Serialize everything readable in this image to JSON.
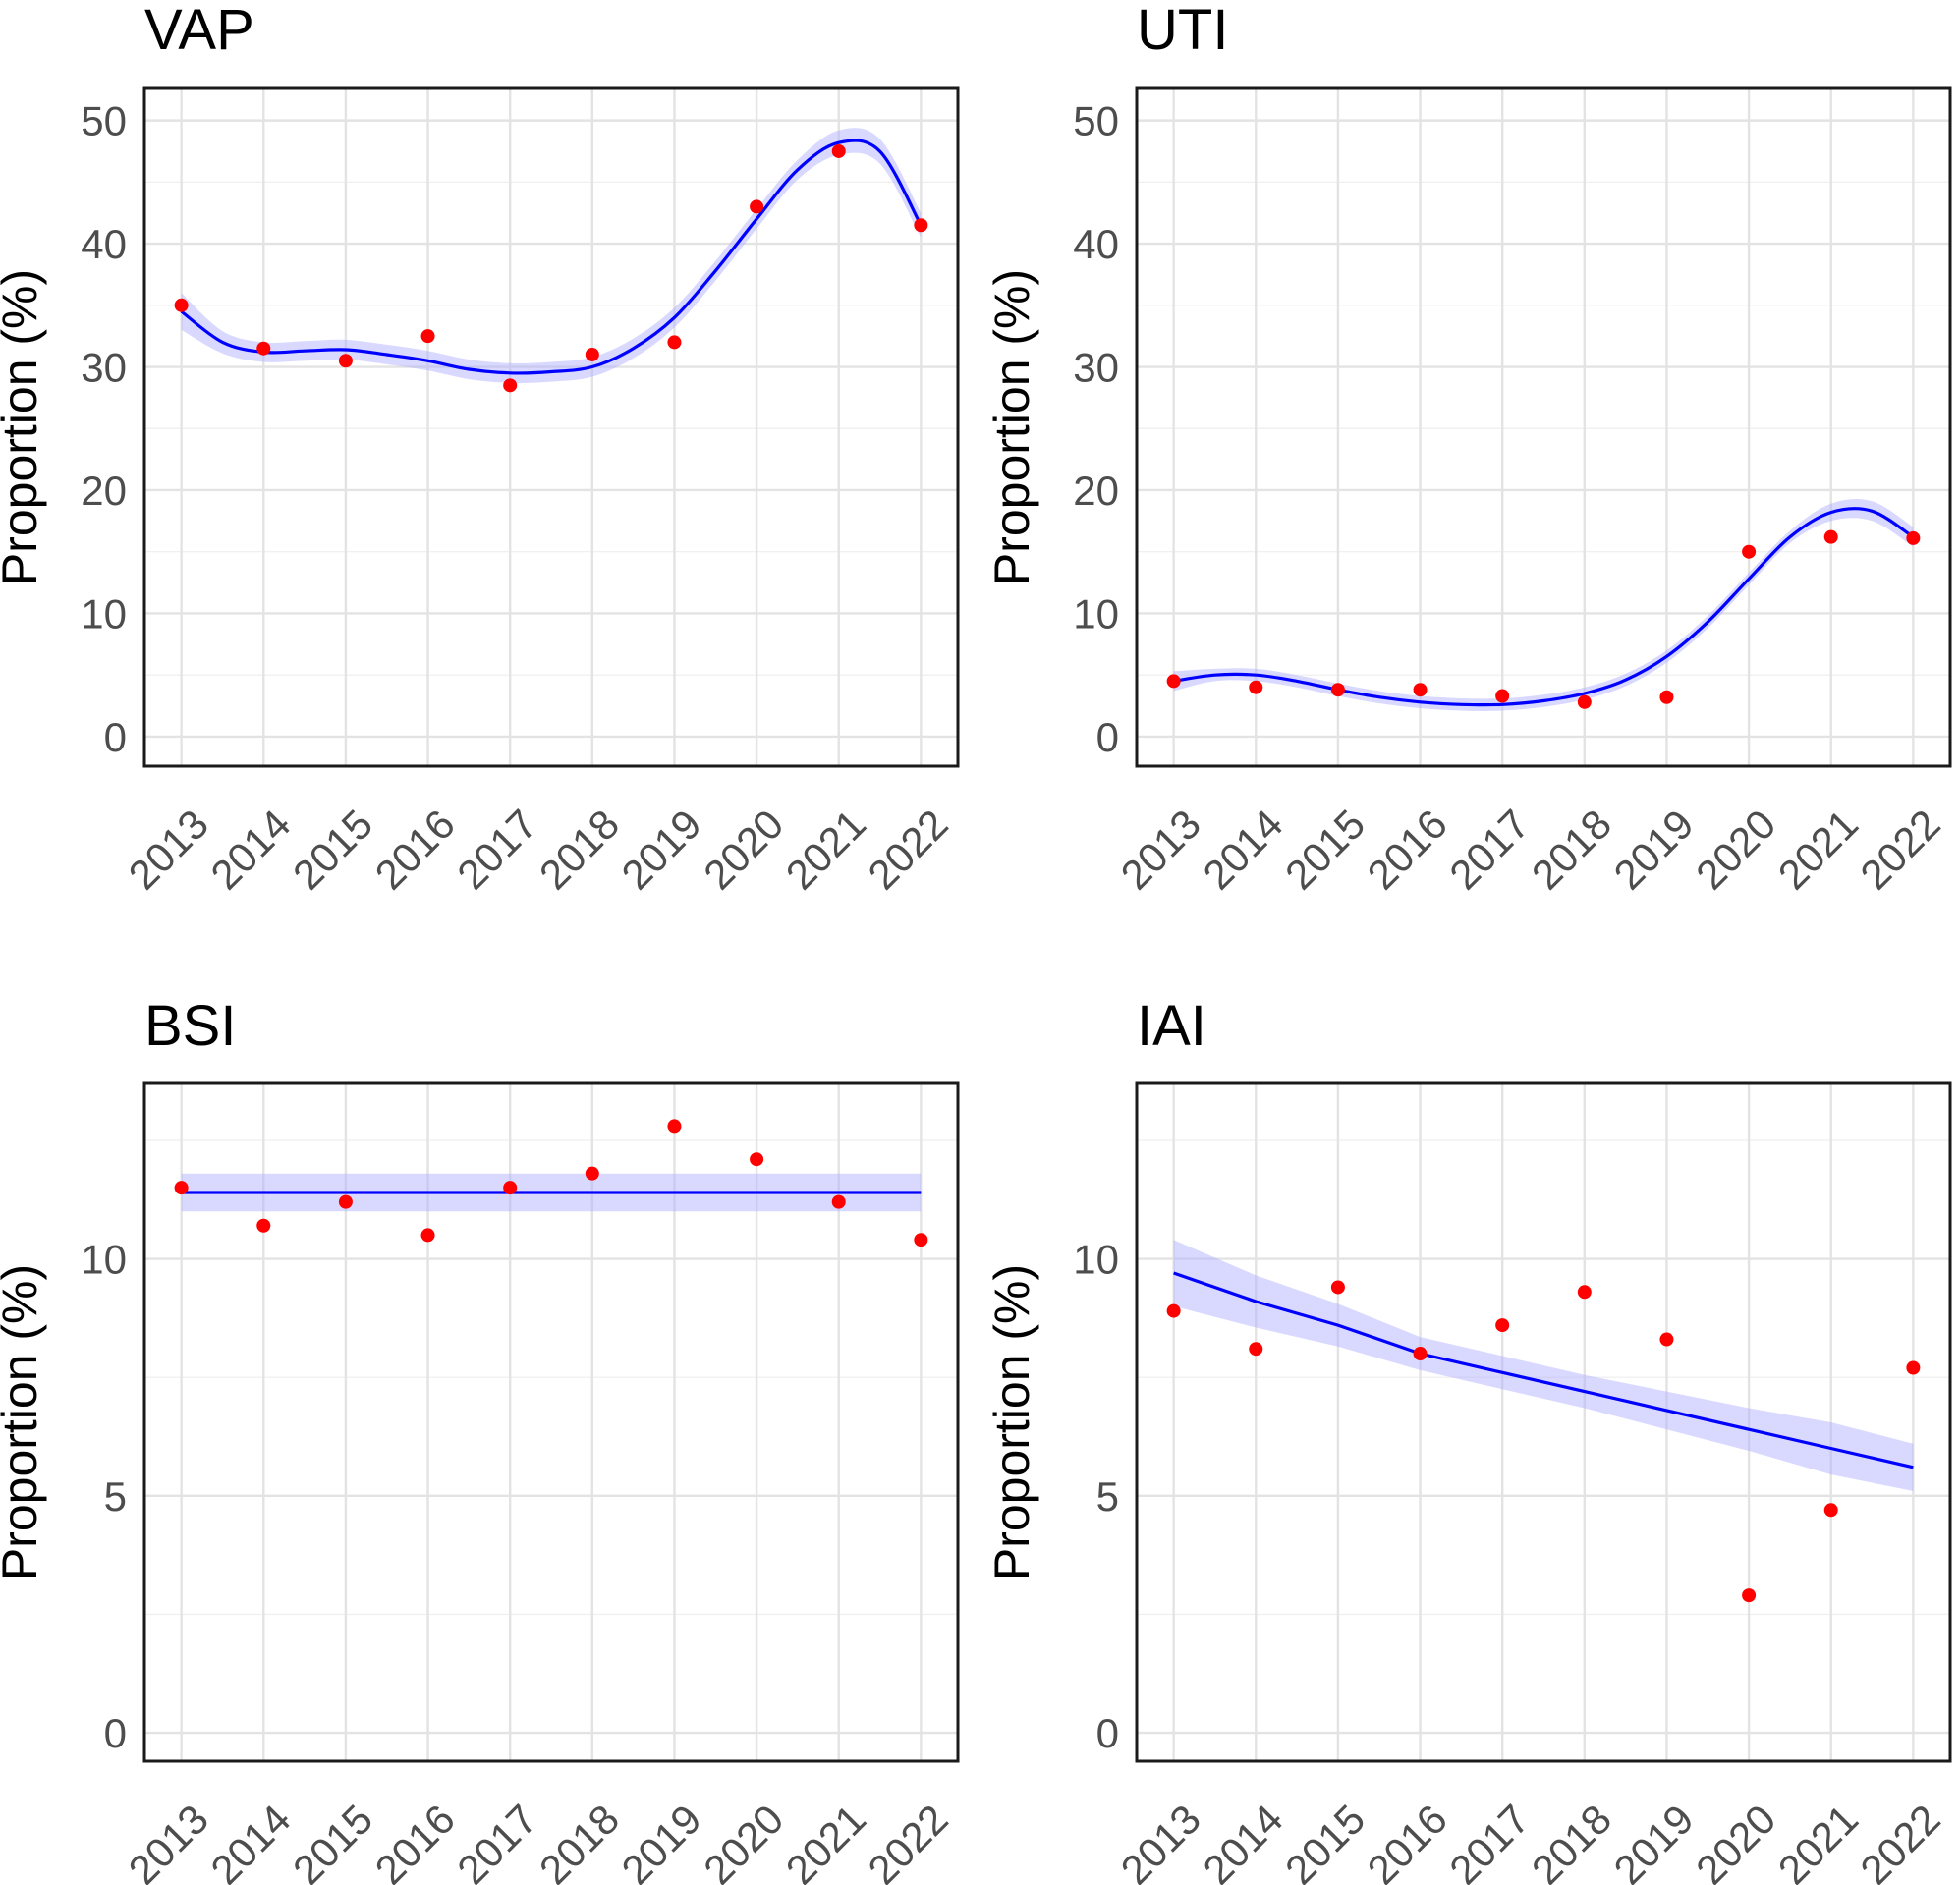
{
  "chart_data": [
    {
      "type": "scatter",
      "title": "VAP",
      "xlabel": "",
      "ylabel": "Proportion (%)",
      "x": [
        "2013",
        "2014",
        "2015",
        "2016",
        "2017",
        "2018",
        "2019",
        "2020",
        "2021",
        "2022"
      ],
      "y": [
        35.0,
        31.5,
        30.5,
        32.5,
        28.5,
        31.0,
        32.0,
        43.0,
        47.5,
        41.5
      ],
      "yticks": [
        0,
        10,
        20,
        30,
        40,
        50
      ],
      "ylim": [
        -2.4,
        52.6
      ],
      "fit": {
        "style": "loess",
        "x": [
          0,
          0.5,
          1,
          1.5,
          2,
          2.5,
          3,
          3.5,
          4,
          4.5,
          5,
          5.5,
          6,
          6.5,
          7,
          7.5,
          8,
          8.5,
          9
        ],
        "y": [
          34.5,
          32.0,
          31.2,
          31.3,
          31.4,
          31.0,
          30.5,
          29.8,
          29.5,
          29.6,
          30.0,
          31.5,
          34.0,
          37.8,
          42.0,
          46.0,
          48.2,
          47.5,
          41.5
        ],
        "se": [
          1.5,
          0.9,
          0.8,
          0.8,
          0.8,
          0.8,
          0.8,
          0.8,
          0.8,
          0.8,
          0.8,
          0.8,
          0.8,
          0.8,
          0.8,
          0.8,
          1.0,
          1.0,
          1.0
        ]
      },
      "colors": {
        "points": "#ff0000",
        "line": "#0000ff",
        "band": "#aaaaff"
      }
    },
    {
      "type": "scatter",
      "title": "UTI",
      "xlabel": "",
      "ylabel": "Proportion (%)",
      "x": [
        "2013",
        "2014",
        "2015",
        "2016",
        "2017",
        "2018",
        "2019",
        "2020",
        "2021",
        "2022"
      ],
      "y": [
        4.5,
        4.0,
        3.8,
        3.8,
        3.3,
        2.8,
        3.2,
        15.0,
        16.2,
        16.1
      ],
      "yticks": [
        0,
        10,
        20,
        30,
        40,
        50
      ],
      "ylim": [
        -2.4,
        52.6
      ],
      "fit": {
        "style": "loess",
        "x": [
          0,
          0.5,
          1,
          1.5,
          2,
          2.5,
          3,
          3.5,
          4,
          4.5,
          5,
          5.5,
          6,
          6.5,
          7,
          7.5,
          8,
          8.5,
          9
        ],
        "y": [
          4.5,
          5.0,
          5.0,
          4.5,
          3.8,
          3.2,
          2.8,
          2.6,
          2.6,
          2.9,
          3.5,
          4.6,
          6.5,
          9.3,
          12.8,
          16.2,
          18.2,
          18.3,
          16.2
        ],
        "se": [
          0.8,
          0.5,
          0.5,
          0.5,
          0.5,
          0.5,
          0.5,
          0.5,
          0.5,
          0.5,
          0.5,
          0.5,
          0.5,
          0.5,
          0.5,
          0.5,
          0.7,
          0.8,
          0.8
        ]
      },
      "colors": {
        "points": "#ff0000",
        "line": "#0000ff",
        "band": "#aaaaff"
      }
    },
    {
      "type": "scatter",
      "title": "BSI",
      "xlabel": "",
      "ylabel": "Proportion (%)",
      "x": [
        "2013",
        "2014",
        "2015",
        "2016",
        "2017",
        "2018",
        "2019",
        "2020",
        "2021",
        "2022"
      ],
      "y": [
        11.5,
        10.7,
        11.2,
        10.5,
        11.5,
        11.8,
        12.8,
        12.1,
        11.2,
        10.4
      ],
      "yticks": [
        0,
        5,
        10
      ],
      "ylim": [
        -0.6,
        13.7
      ],
      "fit": {
        "style": "linear",
        "x": [
          0,
          9
        ],
        "y": [
          11.4,
          11.4
        ],
        "se": [
          0.4,
          0.4
        ]
      },
      "colors": {
        "points": "#ff0000",
        "line": "#0000ff",
        "band": "#aaaaff"
      }
    },
    {
      "type": "scatter",
      "title": "IAI",
      "xlabel": "",
      "ylabel": "Proportion (%)",
      "x": [
        "2013",
        "2014",
        "2015",
        "2016",
        "2017",
        "2018",
        "2019",
        "2020",
        "2021",
        "2022"
      ],
      "y": [
        8.9,
        8.1,
        9.4,
        8.0,
        8.6,
        9.3,
        8.3,
        2.9,
        4.7,
        7.7
      ],
      "yticks": [
        0,
        5,
        10
      ],
      "ylim": [
        -0.6,
        13.7
      ],
      "fit": {
        "style": "linear",
        "x": [
          0,
          1,
          2,
          3,
          4,
          5,
          6,
          7,
          8,
          9
        ],
        "y": [
          9.7,
          9.1,
          8.6,
          8.0,
          7.6,
          7.2,
          6.8,
          6.4,
          6.0,
          5.6
        ],
        "se": [
          0.7,
          0.55,
          0.45,
          0.35,
          0.35,
          0.35,
          0.4,
          0.45,
          0.55,
          0.5
        ]
      },
      "colors": {
        "points": "#ff0000",
        "line": "#0000ff",
        "band": "#aaaaff"
      }
    }
  ]
}
